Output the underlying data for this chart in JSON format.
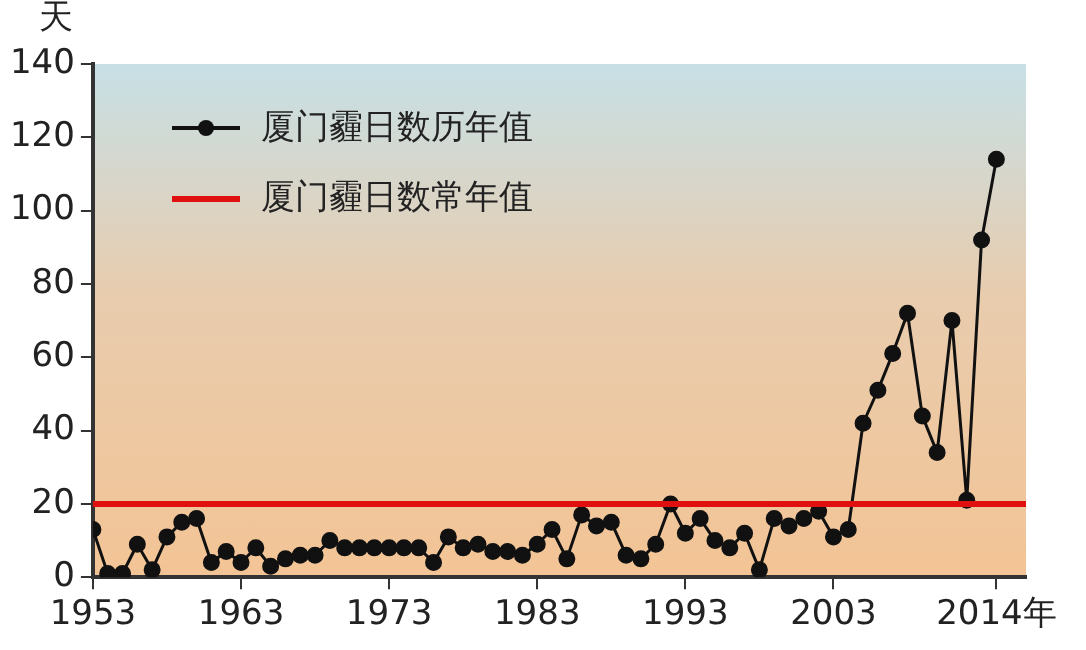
{
  "chart_data": {
    "type": "line",
    "ylabel": "天",
    "x": [
      1953,
      1954,
      1955,
      1956,
      1957,
      1958,
      1959,
      1960,
      1961,
      1962,
      1963,
      1964,
      1965,
      1966,
      1967,
      1968,
      1969,
      1970,
      1971,
      1972,
      1973,
      1974,
      1975,
      1976,
      1977,
      1978,
      1979,
      1980,
      1981,
      1982,
      1983,
      1984,
      1985,
      1986,
      1987,
      1988,
      1989,
      1990,
      1991,
      1992,
      1993,
      1994,
      1995,
      1996,
      1997,
      1998,
      1999,
      2000,
      2001,
      2002,
      2003,
      2004,
      2005,
      2006,
      2007,
      2008,
      2009,
      2010,
      2011,
      2012,
      2013,
      2014
    ],
    "series": [
      {
        "name": "厦门霾日数历年值",
        "color": "#111111",
        "values": [
          13,
          1,
          1,
          9,
          2,
          11,
          15,
          16,
          4,
          7,
          4,
          8,
          3,
          5,
          6,
          6,
          10,
          8,
          8,
          8,
          8,
          8,
          8,
          4,
          11,
          8,
          9,
          7,
          7,
          6,
          9,
          13,
          5,
          17,
          14,
          15,
          6,
          5,
          9,
          20,
          12,
          16,
          10,
          8,
          12,
          2,
          16,
          14,
          16,
          18,
          11,
          13,
          42,
          51,
          61,
          72,
          44,
          34,
          70,
          21,
          92,
          114
        ]
      }
    ],
    "xlim": [
      1953,
      2016
    ],
    "xticks": [
      1953,
      1963,
      1973,
      1983,
      1993,
      2003,
      {
        "value": 2014,
        "label": "2014年"
      }
    ],
    "ylim": [
      0,
      140
    ],
    "yticks": [
      0,
      20,
      40,
      60,
      80,
      100,
      120,
      140
    ],
    "ref_lines": [
      {
        "axis": "y",
        "value": 20,
        "label": "厦门霾日数常年值",
        "color": "#e01010"
      }
    ],
    "grid": false,
    "legend": "top left",
    "marker": "circle",
    "line_style": "solid"
  }
}
